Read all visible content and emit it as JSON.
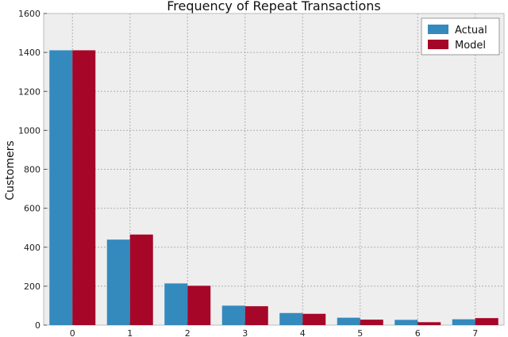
{
  "chart_data": {
    "type": "bar",
    "title": "Frequency of Repeat Transactions",
    "xlabel": "",
    "ylabel": "Customers",
    "categories": [
      "0",
      "1",
      "2",
      "3",
      "4",
      "5",
      "6",
      "7"
    ],
    "series": [
      {
        "name": "Actual",
        "color": "#348ABD",
        "values": [
          1411,
          439,
          214,
          100,
          62,
          38,
          27,
          30
        ]
      },
      {
        "name": "Model",
        "color": "#A60628",
        "values": [
          1411,
          465,
          202,
          97,
          58,
          28,
          15,
          36
        ]
      }
    ],
    "ylim": [
      0,
      1600
    ],
    "yticks": [
      0,
      200,
      400,
      600,
      800,
      1000,
      1200,
      1400,
      1600
    ],
    "grid": true,
    "legend_position": "top-right",
    "background": "#EEEEEE"
  }
}
